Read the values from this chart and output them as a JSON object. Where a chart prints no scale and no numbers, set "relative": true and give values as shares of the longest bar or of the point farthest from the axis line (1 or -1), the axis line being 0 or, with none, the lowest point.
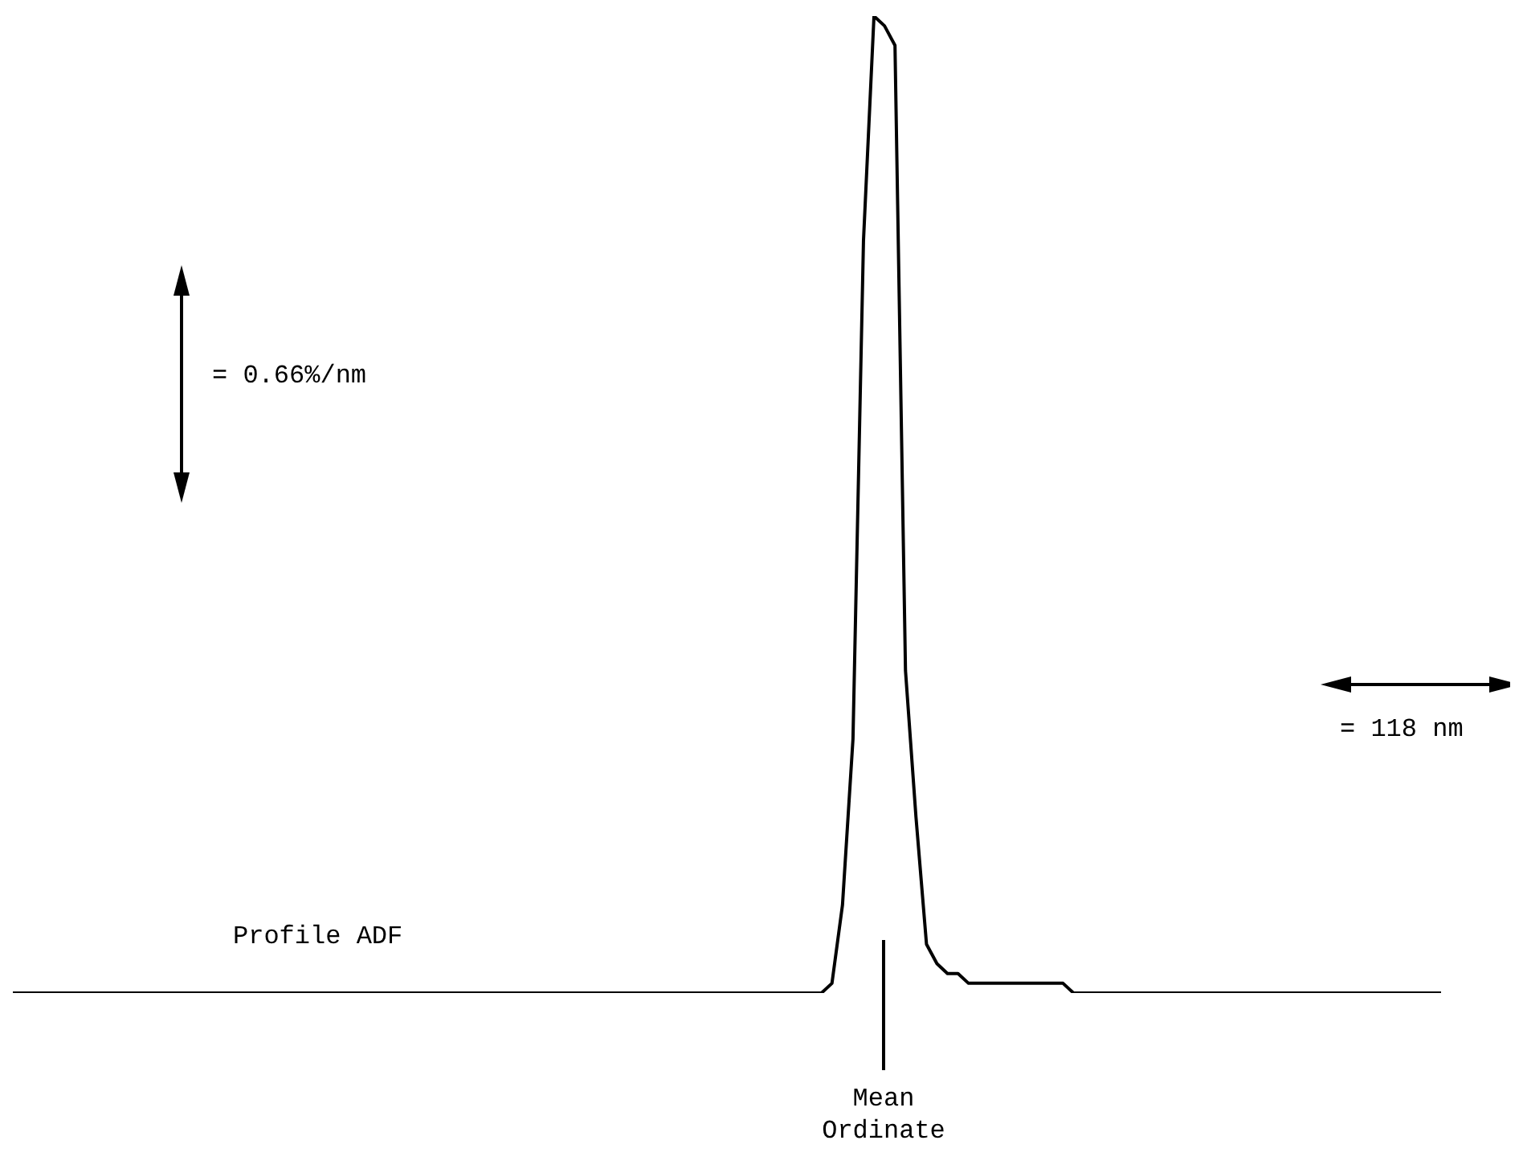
{
  "chart_data": {
    "type": "line",
    "relative": true,
    "categories": [
      null,
      null,
      null,
      null,
      null,
      null,
      null,
      null,
      null,
      null,
      null,
      null,
      null,
      null,
      null,
      null,
      null,
      null,
      null,
      null,
      null,
      null,
      null,
      null,
      null,
      null,
      null,
      null,
      null,
      null,
      null,
      null,
      null,
      null,
      null,
      null,
      null,
      null,
      null,
      null,
      null,
      null,
      null,
      null,
      null,
      null,
      null,
      null,
      null,
      null,
      null,
      null,
      null,
      null,
      null,
      null,
      null,
      null,
      null,
      null,
      null,
      null,
      null,
      null,
      null,
      null,
      null,
      null,
      null,
      null,
      null,
      null,
      null,
      null,
      null,
      null,
      null,
      null,
      null,
      null,
      null,
      null,
      null,
      null,
      null,
      null,
      null,
      null,
      null,
      null,
      null,
      null,
      null,
      null,
      null,
      null,
      null,
      null,
      null,
      null,
      null,
      null,
      null,
      null,
      null,
      null,
      null,
      null,
      null,
      null,
      null,
      null,
      null,
      null,
      null,
      null,
      null,
      null,
      null,
      null,
      null,
      null,
      null,
      null,
      null,
      null,
      null,
      null,
      null,
      null,
      null,
      null,
      null,
      null,
      null,
      null,
      null
    ],
    "series": [
      {
        "name": "Profile ADF",
        "color": "#000000",
        "values": [
          0,
          0,
          0,
          0,
          0,
          0,
          0,
          0,
          0,
          0,
          0,
          0,
          0,
          0,
          0,
          0,
          0,
          0,
          0,
          0,
          0,
          0,
          0,
          0,
          0,
          0,
          0,
          0,
          0,
          0,
          0,
          0,
          0,
          0,
          0,
          0,
          0,
          0,
          0,
          0,
          0,
          0,
          0,
          0,
          0,
          0,
          0,
          0,
          0,
          0,
          0,
          0,
          0,
          0,
          0,
          0,
          0,
          0,
          0,
          0,
          0,
          0,
          0,
          0,
          0,
          0,
          0,
          0,
          0,
          0,
          0,
          0,
          0,
          0,
          0,
          0,
          0,
          0,
          0.01,
          0.09,
          0.26,
          0.77,
          1,
          0.99,
          0.97,
          0.33,
          0.18,
          0.05,
          0.03,
          0.02,
          0.02,
          0.01,
          0.01,
          0.01,
          0.01,
          0.01,
          0.01,
          0.01,
          0.01,
          0.01,
          0.01,
          0,
          0,
          0,
          0,
          0,
          0,
          0,
          0,
          0,
          0,
          0,
          0,
          0,
          0,
          0,
          0,
          0,
          0,
          0,
          0,
          0,
          0,
          0,
          0,
          0,
          0,
          0,
          0,
          0,
          0,
          0,
          0,
          0,
          0,
          0,
          0
        ]
      }
    ],
    "annotations": [
      "= 0.66%/nm",
      "= 118 nm",
      "Mean Ordinate"
    ],
    "legend": false,
    "grid": false,
    "marker": "none",
    "line_style": "solid",
    "tick_labels": false
  }
}
